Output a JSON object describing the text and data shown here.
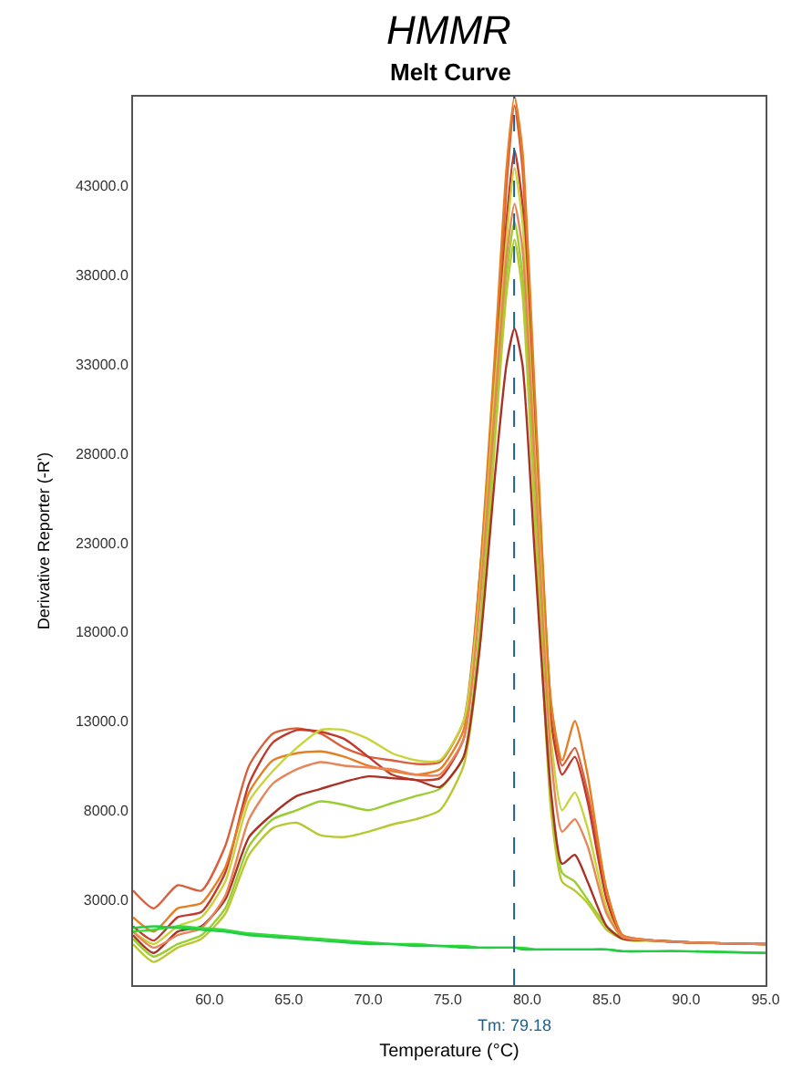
{
  "chart_data": {
    "type": "line",
    "title": "HMMR",
    "subtitle": "Melt Curve",
    "xlabel": "Temperature (°C)",
    "ylabel": "Derivative Reporter (-R')",
    "x": [
      55.2,
      56.5,
      58,
      59.5,
      61,
      62.5,
      64,
      65.5,
      67,
      68.5,
      70,
      71.5,
      73,
      74.5,
      76,
      77,
      78,
      78.7,
      79.2,
      79.7,
      80.5,
      81.5,
      82.2,
      83,
      83.8,
      85,
      86,
      88,
      90,
      95
    ],
    "series": [
      {
        "color": "#d9603b",
        "values": [
          3500,
          2500,
          3800,
          3500,
          6000,
          10500,
          12300,
          12600,
          12300,
          11500,
          11000,
          10800,
          10600,
          10700,
          13000,
          21000,
          33000,
          43000,
          47500,
          44000,
          30000,
          14000,
          10500,
          11500,
          9000,
          3500,
          1000,
          700,
          600,
          500
        ]
      },
      {
        "color": "#c0392b",
        "values": [
          1500,
          700,
          2000,
          2300,
          4500,
          9500,
          11800,
          12500,
          12400,
          12000,
          11000,
          10000,
          9700,
          9800,
          12000,
          20000,
          32000,
          41000,
          45000,
          42000,
          29000,
          13000,
          10000,
          11000,
          8500,
          3000,
          900,
          700,
          600,
          500
        ]
      },
      {
        "color": "#e67e22",
        "values": [
          2000,
          1200,
          2500,
          2800,
          4800,
          9000,
          10800,
          11200,
          11300,
          11000,
          10500,
          10200,
          10000,
          10300,
          12500,
          21000,
          34000,
          44000,
          48000,
          45000,
          31000,
          14000,
          10800,
          13000,
          10000,
          3500,
          1000,
          700,
          600,
          500
        ]
      },
      {
        "color": "#c8d43a",
        "values": [
          1200,
          500,
          1500,
          2000,
          4000,
          8500,
          10200,
          11500,
          12500,
          12500,
          12000,
          11200,
          10800,
          10800,
          13000,
          20000,
          32000,
          40000,
          44000,
          41000,
          28000,
          12000,
          8000,
          9000,
          7000,
          2500,
          800,
          700,
          null,
          null
        ]
      },
      {
        "color": "#9acd32",
        "values": [
          800,
          -200,
          500,
          1000,
          2500,
          6000,
          7500,
          8000,
          8500,
          8300,
          8000,
          8400,
          8800,
          9200,
          11000,
          18000,
          30000,
          38000,
          41000,
          38000,
          25000,
          9000,
          4500,
          4000,
          3000,
          1500,
          800,
          700,
          600,
          500
        ]
      },
      {
        "color": "#b8c830",
        "values": [
          500,
          -500,
          300,
          800,
          2200,
          5500,
          7000,
          7300,
          6600,
          6500,
          6800,
          7200,
          7500,
          8000,
          10500,
          17000,
          29000,
          37000,
          40000,
          37000,
          24000,
          8000,
          4000,
          3500,
          2800,
          1300,
          800,
          700,
          600,
          500
        ]
      },
      {
        "color": "#a93226",
        "values": [
          1000,
          0,
          1200,
          1500,
          3000,
          6500,
          7800,
          8800,
          9200,
          9600,
          9900,
          9800,
          9700,
          9300,
          11000,
          17000,
          27000,
          33000,
          35000,
          33000,
          22000,
          9000,
          5000,
          5500,
          4000,
          1500,
          800,
          700,
          600,
          500
        ]
      },
      {
        "color": "#e8845a",
        "values": [
          1200,
          300,
          1000,
          1400,
          3200,
          7500,
          9500,
          10300,
          10700,
          10500,
          10400,
          10300,
          10000,
          10000,
          12000,
          19500,
          31000,
          39000,
          42000,
          39500,
          27000,
          11000,
          6800,
          7500,
          6000,
          2200,
          900,
          700,
          600,
          500
        ]
      },
      {
        "color": "#33dd33",
        "values": [
          1200,
          1300,
          1500,
          1400,
          1300,
          1100,
          1000,
          900,
          800,
          700,
          600,
          500,
          500,
          400,
          400,
          300,
          300,
          300,
          300,
          300,
          200,
          200,
          200,
          200,
          200,
          200,
          100,
          100,
          100,
          0
        ]
      },
      {
        "color": "#22cc44",
        "values": [
          1400,
          1500,
          1400,
          1300,
          1200,
          1000,
          900,
          800,
          700,
          600,
          500,
          500,
          400,
          400,
          300,
          300,
          300,
          300,
          300,
          200,
          200,
          200,
          200,
          200,
          200,
          200,
          100,
          100,
          100,
          0
        ]
      }
    ],
    "xlim": [
      55.2,
      95
    ],
    "ylim": [
      -1800,
      48000
    ],
    "xticks": [
      {
        "value": 60,
        "label": "60.0"
      },
      {
        "value": 65,
        "label": "65.0"
      },
      {
        "value": 70,
        "label": "70.0"
      },
      {
        "value": 75,
        "label": "75.0"
      },
      {
        "value": 80,
        "label": "80.0"
      },
      {
        "value": 85,
        "label": "85.0"
      },
      {
        "value": 90,
        "label": "90.0"
      },
      {
        "value": 95,
        "label": "95.0"
      }
    ],
    "yticks": [
      {
        "value": 3000,
        "label": "3000.0"
      },
      {
        "value": 8000,
        "label": "8000.0"
      },
      {
        "value": 13000,
        "label": "13000.0"
      },
      {
        "value": 18000,
        "label": "18000.0"
      },
      {
        "value": 23000,
        "label": "23000.0"
      },
      {
        "value": 28000,
        "label": "28000.0"
      },
      {
        "value": 33000,
        "label": "33000.0"
      },
      {
        "value": 38000,
        "label": "38000.0"
      },
      {
        "value": 43000,
        "label": "43000.0"
      }
    ],
    "ref_lines": [
      {
        "axis": "x",
        "value": 79.18,
        "label": "Tm: 79.18",
        "color": "#1f5f8b",
        "line_style": "dashed"
      }
    ],
    "marker": "none",
    "line_style": "solid"
  }
}
